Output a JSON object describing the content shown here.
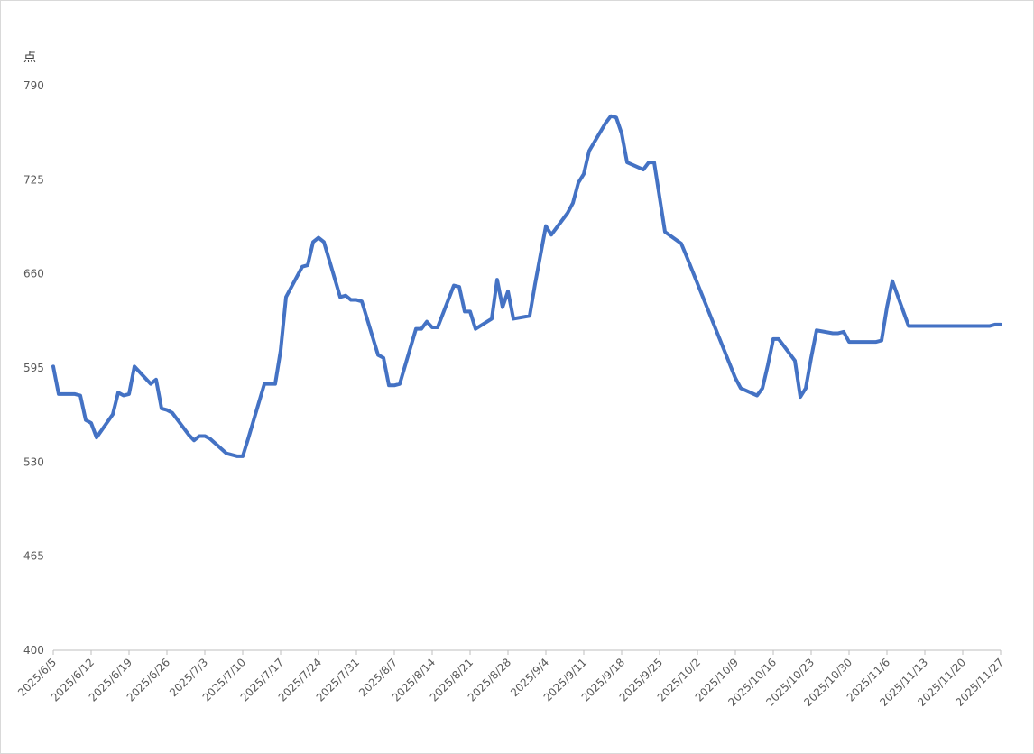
{
  "chart_data": {
    "type": "line",
    "y_axis_label": "点",
    "x": [
      "2025/6/5",
      "2025/6/6",
      "2025/6/9",
      "2025/6/10",
      "2025/6/11",
      "2025/6/12",
      "2025/6/13",
      "2025/6/16",
      "2025/6/17",
      "2025/6/18",
      "2025/6/19",
      "2025/6/20",
      "2025/6/23",
      "2025/6/24",
      "2025/6/25",
      "2025/6/26",
      "2025/6/27",
      "2025/6/30",
      "2025/7/1",
      "2025/7/2",
      "2025/7/3",
      "2025/7/4",
      "2025/7/7",
      "2025/7/8",
      "2025/7/9",
      "2025/7/10",
      "2025/7/11",
      "2025/7/14",
      "2025/7/15",
      "2025/7/16",
      "2025/7/17",
      "2025/7/18",
      "2025/7/21",
      "2025/7/22",
      "2025/7/23",
      "2025/7/24",
      "2025/7/25",
      "2025/7/28",
      "2025/7/29",
      "2025/7/30",
      "2025/7/31",
      "2025/8/1",
      "2025/8/4",
      "2025/8/5",
      "2025/8/6",
      "2025/8/7",
      "2025/8/8",
      "2025/8/11",
      "2025/8/12",
      "2025/8/13",
      "2025/8/14",
      "2025/8/15",
      "2025/8/18",
      "2025/8/19",
      "2025/8/20",
      "2025/8/21",
      "2025/8/22",
      "2025/8/25",
      "2025/8/26",
      "2025/8/27",
      "2025/8/28",
      "2025/8/29",
      "2025/9/1",
      "2025/9/2",
      "2025/9/3",
      "2025/9/4",
      "2025/9/5",
      "2025/9/8",
      "2025/9/9",
      "2025/9/10",
      "2025/9/11",
      "2025/9/12",
      "2025/9/15",
      "2025/9/16",
      "2025/9/17",
      "2025/9/18",
      "2025/9/19",
      "2025/9/22",
      "2025/9/23",
      "2025/9/24",
      "2025/9/25",
      "2025/9/26",
      "2025/9/29",
      "2025/9/30",
      "2025/10/9",
      "2025/10/10",
      "2025/10/13",
      "2025/10/14",
      "2025/10/15",
      "2025/10/16",
      "2025/10/17",
      "2025/10/20",
      "2025/10/21",
      "2025/10/22",
      "2025/10/23",
      "2025/10/24",
      "2025/10/27",
      "2025/10/28",
      "2025/10/29",
      "2025/10/30",
      "2025/10/31",
      "2025/11/3",
      "2025/11/4",
      "2025/11/5",
      "2025/11/6",
      "2025/11/7",
      "2025/11/10",
      "2025/11/11",
      "2025/11/12",
      "2025/11/13",
      "2025/11/14",
      "2025/11/17",
      "2025/11/18",
      "2025/11/19",
      "2025/11/20",
      "2025/11/21",
      "2025/11/24",
      "2025/11/25",
      "2025/11/26",
      "2025/11/27"
    ],
    "series": [
      {
        "color": "#4472c4",
        "values": [
          596,
          577,
          577,
          576,
          559,
          557,
          547,
          563,
          578,
          576,
          577,
          596,
          584,
          587,
          567,
          566,
          564,
          549,
          545,
          548,
          548,
          546,
          536,
          535,
          534,
          534,
          546,
          584,
          584,
          584,
          607,
          644,
          665,
          666,
          682,
          685,
          682,
          644,
          645,
          642,
          642,
          641,
          604,
          602,
          583,
          583,
          584,
          622,
          622,
          627,
          623,
          623,
          652,
          651,
          634,
          634,
          622,
          629,
          656,
          637,
          648,
          629,
          631,
          653,
          673,
          693,
          687,
          702,
          709,
          723,
          729,
          745,
          764,
          769,
          768,
          757,
          737,
          732,
          737,
          737,
          713,
          689,
          681,
          672,
          588,
          581,
          576,
          581,
          597,
          615,
          615,
          600,
          575,
          581,
          602,
          621,
          619,
          619,
          620,
          613,
          613,
          613,
          613,
          614,
          637,
          655,
          624,
          624,
          624,
          624,
          624,
          624,
          624,
          624,
          624,
          624,
          624,
          624,
          625,
          625
        ]
      }
    ],
    "xlim": [
      "2025/6/5",
      "2025/11/27"
    ],
    "xticks": [
      "2025/6/5",
      "2025/6/12",
      "2025/6/19",
      "2025/6/26",
      "2025/7/3",
      "2025/7/10",
      "2025/7/17",
      "2025/7/24",
      "2025/7/31",
      "2025/8/7",
      "2025/8/14",
      "2025/8/21",
      "2025/8/28",
      "2025/9/4",
      "2025/9/11",
      "2025/9/18",
      "2025/9/25",
      "2025/10/2",
      "2025/10/9",
      "2025/10/16",
      "2025/10/23",
      "2025/10/30",
      "2025/11/6",
      "2025/11/13",
      "2025/11/20",
      "2025/11/27"
    ],
    "ylim": [
      400,
      790
    ],
    "yticks": [
      400,
      465,
      530,
      595,
      660,
      725,
      790
    ],
    "grid": false
  }
}
